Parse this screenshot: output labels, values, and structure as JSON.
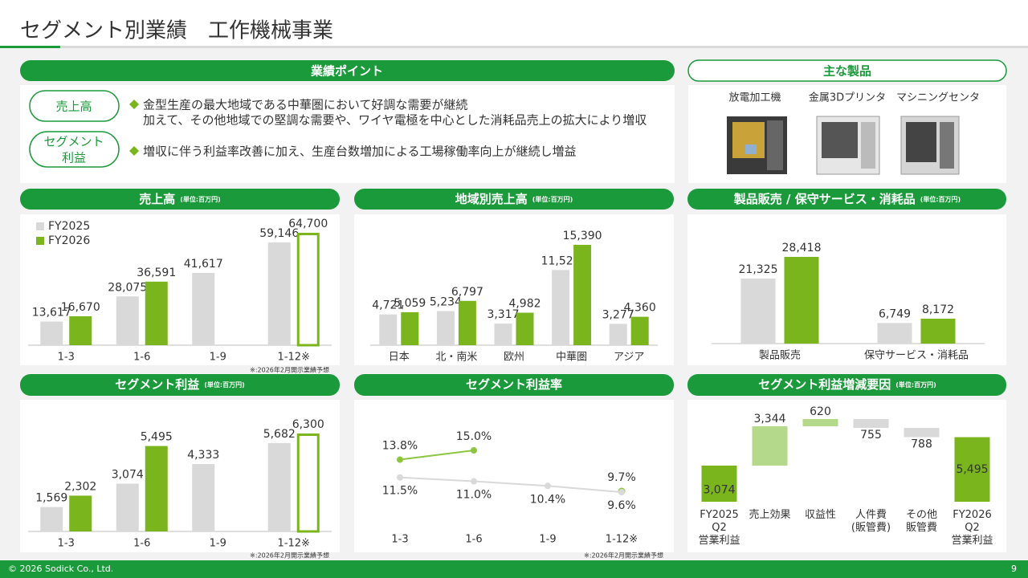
{
  "header": {
    "title": "セグメント別業績　工作機械事業"
  },
  "points": {
    "title": "業績ポイント",
    "items": [
      {
        "label": [
          "売上高"
        ],
        "lines": [
          "金型生産の最大地域である中華圏において好調な需要が継続",
          "加えて、その他地域での堅調な需要や、ワイヤ電極を中心とした消耗品売上の拡大により増収"
        ]
      },
      {
        "label": [
          "セグメント",
          "利益"
        ],
        "lines": [
          "増収に伴う利益率改善に加え、生産台数増加による工場稼働率向上が継続し増益"
        ]
      }
    ]
  },
  "products": {
    "title": "主な製品",
    "items": [
      "放電加工機",
      "金属3Dプリンタ",
      "マシニングセンタ"
    ]
  },
  "chart_data": [
    {
      "type": "bar",
      "title": "売上高",
      "subtitle": "(単位:百万円)",
      "categories": [
        "1-3",
        "1-6",
        "1-9",
        "1-12※"
      ],
      "series": [
        {
          "name": "FY2025",
          "color": "#d9d9d9",
          "label_color": "#333333",
          "values": [
            13617,
            28075,
            41617,
            59146
          ],
          "value_labels": [
            "13,617",
            "28,075",
            "41,617",
            "59,146"
          ]
        },
        {
          "name": "FY2026",
          "color": "#7ab51d",
          "label_color": "#7ab51d",
          "values": [
            16670,
            36591,
            null,
            64700
          ],
          "value_labels": [
            "16,670",
            "36,591",
            null,
            "64,700"
          ],
          "outlined": [
            false,
            false,
            null,
            true
          ]
        }
      ],
      "legend": "upper left",
      "note": "※:2026年2月開示業績予想"
    },
    {
      "type": "bar",
      "title": "地域別売上高",
      "subtitle": "(単位:百万円)",
      "categories": [
        "日本",
        "北・南米",
        "欧州",
        "中華圏",
        "アジア"
      ],
      "series": [
        {
          "color": "#d9d9d9",
          "label_color": "#333333",
          "values": [
            4721,
            5234,
            3317,
            11523,
            3277
          ],
          "value_labels": [
            "4,721",
            "5,234",
            "3,317",
            "11,523",
            "3,277"
          ]
        },
        {
          "color": "#7ab51d",
          "label_color": "#7ab51d",
          "values": [
            5059,
            6797,
            4982,
            15390,
            4360
          ],
          "value_labels": [
            "5,059",
            "6,797",
            "4,982",
            "15,390",
            "4,360"
          ]
        }
      ]
    },
    {
      "type": "bar",
      "title": "製品販売 / 保守サービス・消耗品",
      "subtitle": "(単位:百万円)",
      "categories": [
        "製品販売",
        "保守サービス・消耗品"
      ],
      "series": [
        {
          "color": "#d9d9d9",
          "label_color": "#333333",
          "values": [
            21325,
            6749
          ],
          "value_labels": [
            "21,325",
            "6,749"
          ]
        },
        {
          "color": "#7ab51d",
          "label_color": "#7ab51d",
          "values": [
            28418,
            8172
          ],
          "value_labels": [
            "28,418",
            "8,172"
          ]
        }
      ]
    },
    {
      "type": "bar",
      "title": "セグメント利益",
      "subtitle": "(単位:百万円)",
      "categories": [
        "1-3",
        "1-6",
        "1-9",
        "1-12※"
      ],
      "series": [
        {
          "color": "#d9d9d9",
          "label_color": "#333333",
          "values": [
            1569,
            3074,
            4333,
            5682
          ],
          "value_labels": [
            "1,569",
            "3,074",
            "4,333",
            "5,682"
          ]
        },
        {
          "color": "#7ab51d",
          "label_color": "#7ab51d",
          "values": [
            2302,
            5495,
            null,
            6300
          ],
          "value_labels": [
            "2,302",
            "5,495",
            null,
            "6,300"
          ],
          "outlined": [
            false,
            false,
            null,
            true
          ]
        }
      ],
      "note": "※:2026年2月開示業績予想"
    },
    {
      "type": "line",
      "title": "セグメント利益率",
      "categories": [
        "1-3",
        "1-6",
        "1-9",
        "1-12※"
      ],
      "series": [
        {
          "color": "#8cc63f",
          "label_color": "#7ab51d",
          "label_position": "above",
          "values": [
            13.8,
            15.0,
            null,
            9.7
          ],
          "value_labels": [
            "13.8%",
            "15.0%",
            null,
            "9.7%"
          ],
          "outlined": [
            false,
            false,
            null,
            true
          ]
        },
        {
          "color": "#d9d9d9",
          "label_color": "#333333",
          "label_position": "below",
          "values": [
            11.5,
            11.0,
            10.4,
            9.6
          ],
          "value_labels": [
            "11.5%",
            "11.0%",
            "10.4%",
            "9.6%"
          ]
        }
      ],
      "note": "※:2026年2月開示業績予想"
    },
    {
      "type": "waterfall",
      "title": "セグメント利益増減要因",
      "subtitle": "(単位:百万円)",
      "categories": [
        [
          "FY2025",
          "Q2",
          "営業利益"
        ],
        [
          "売上効果"
        ],
        [
          "収益性"
        ],
        [
          "人件費",
          "(販管費)"
        ],
        [
          "その他",
          "販管費"
        ],
        [
          "FY2026",
          "Q2",
          "営業利益"
        ]
      ],
      "values": [
        3074,
        3344,
        620,
        -755,
        -788,
        5495
      ],
      "value_labels": [
        "3,074",
        "3,344",
        "620",
        "755",
        "788",
        "5,495"
      ],
      "colors": [
        "#7ab51d",
        "#b5d98a",
        "#b5d98a",
        "#d9d9d9",
        "#d9d9d9",
        "#7ab51d"
      ]
    }
  ],
  "footer": {
    "copyright": "© 2026 Sodick Co., Ltd.",
    "page": "9"
  }
}
